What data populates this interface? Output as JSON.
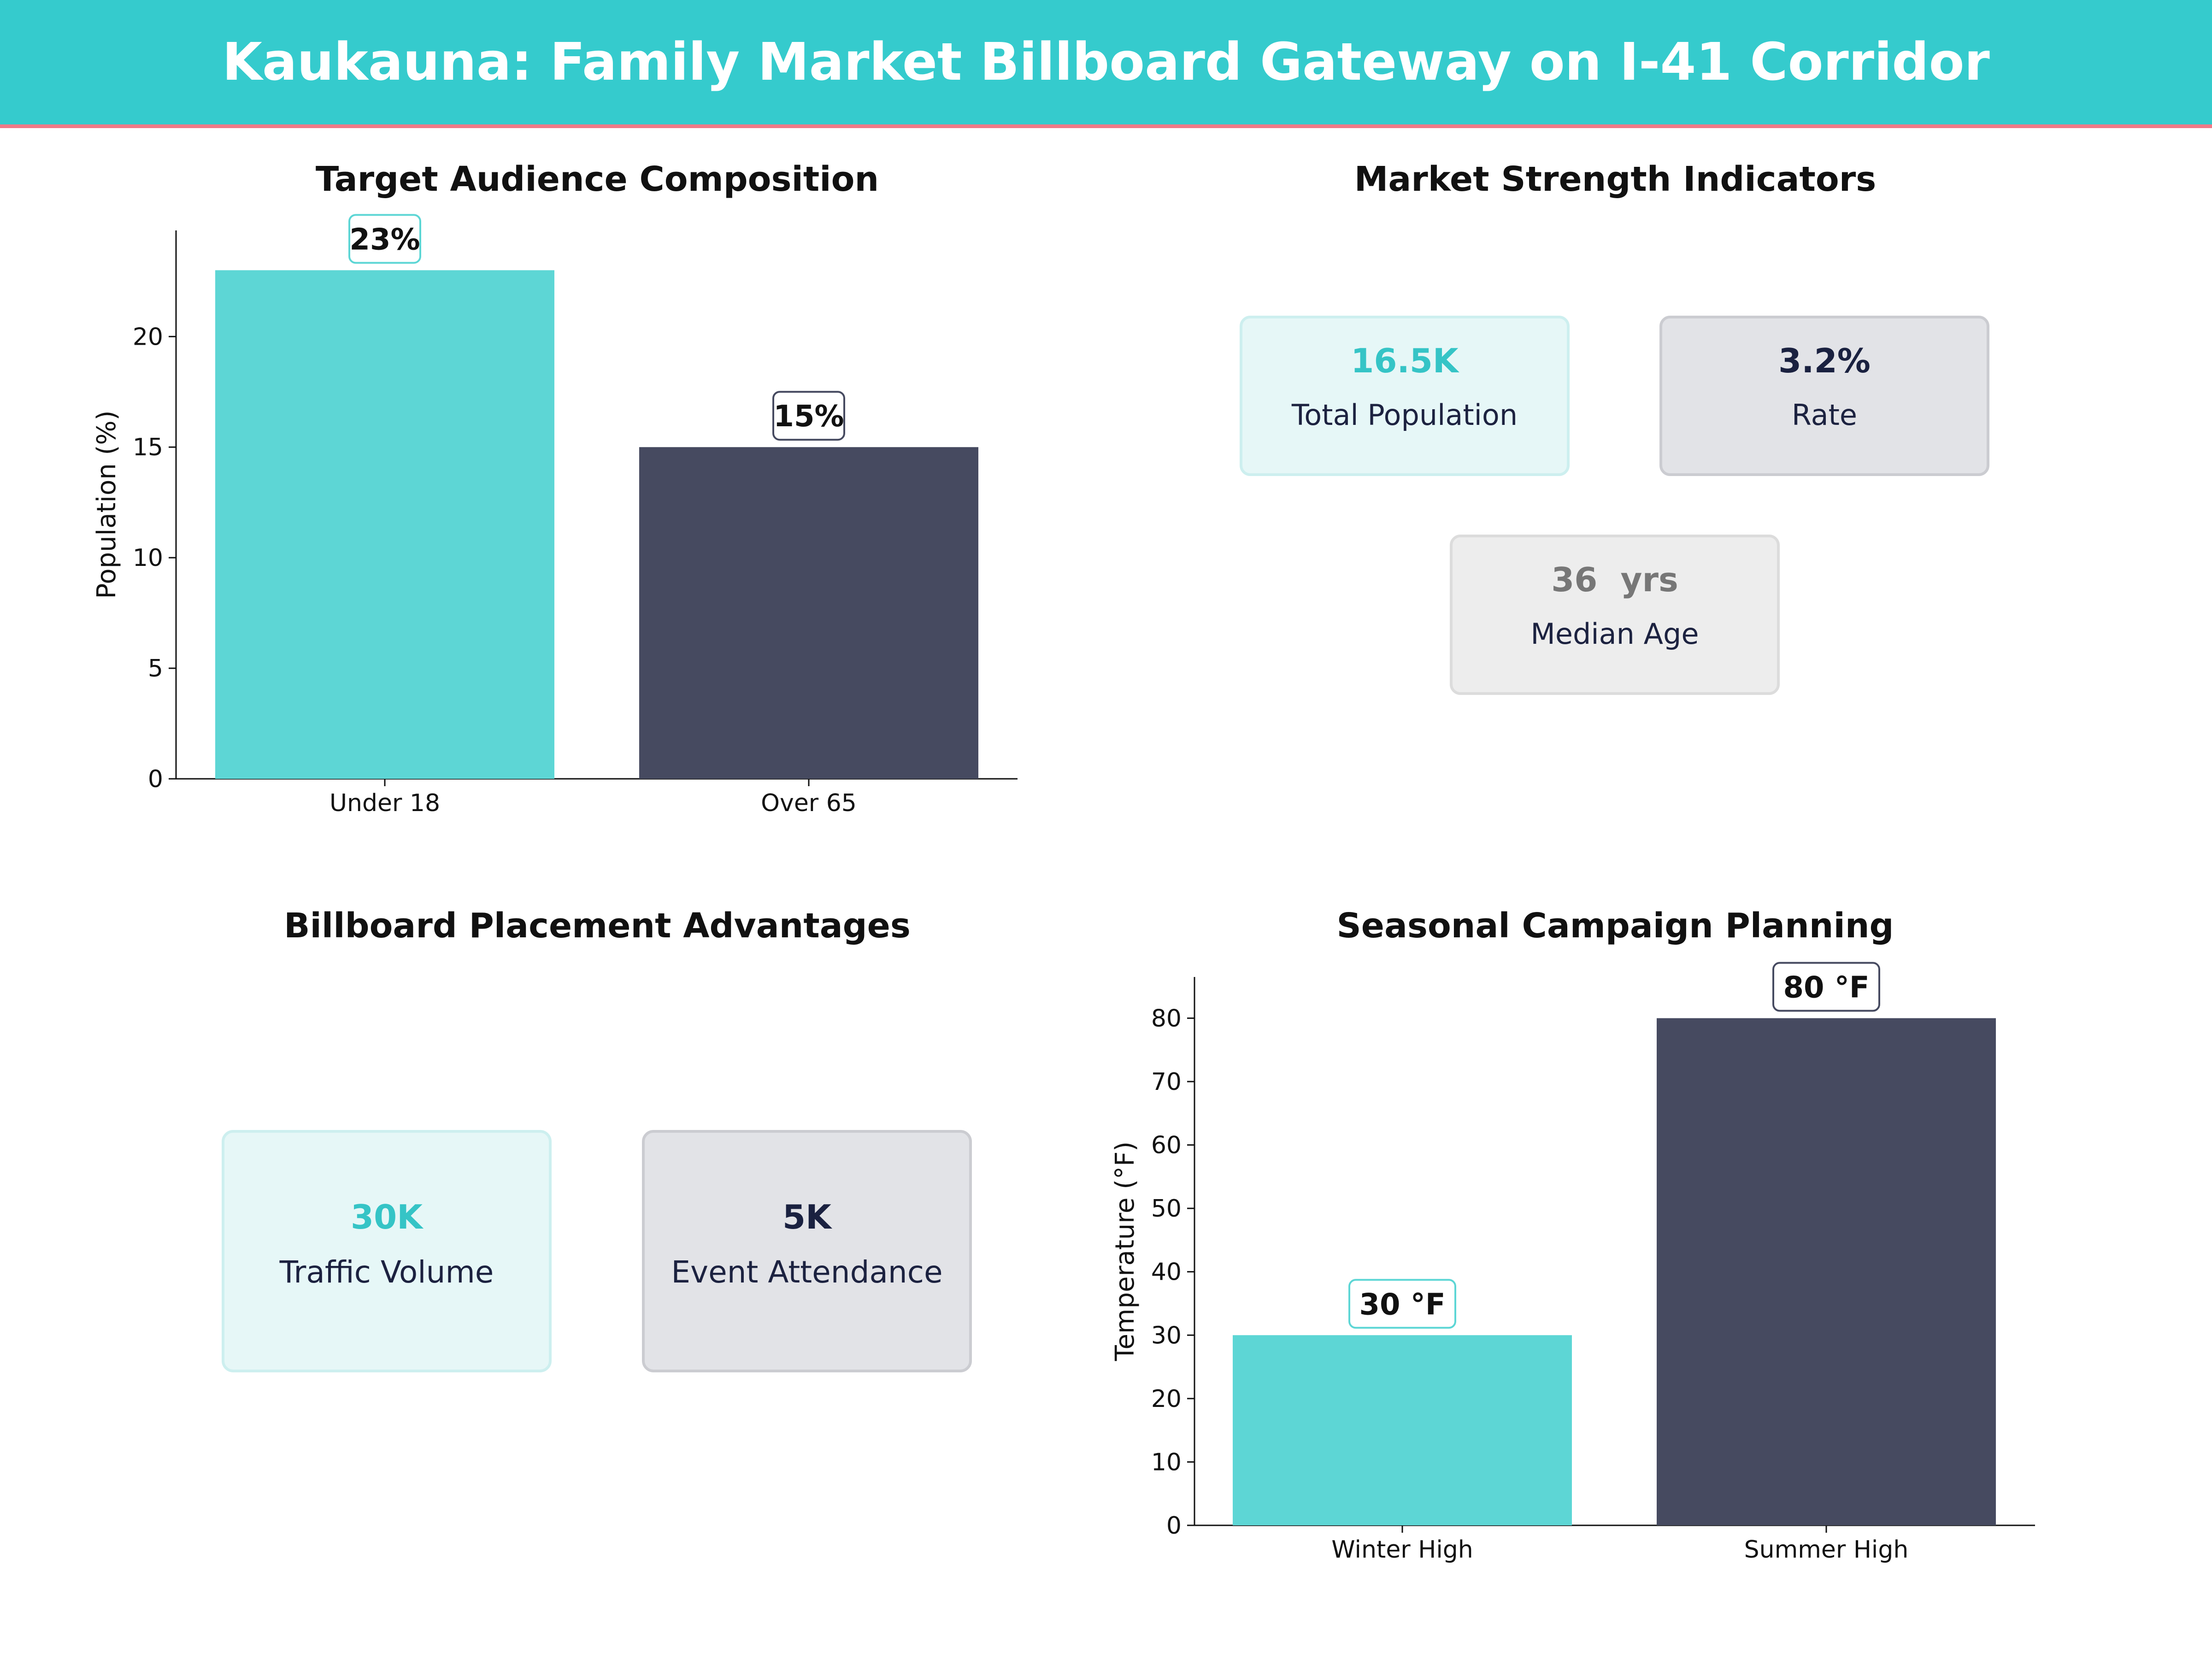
{
  "page_title": "Kaukauna: Family Market Billboard Gateway on I-41 Corridor",
  "colors": {
    "header_bg": "#35CBCD",
    "header_border": "#F07A87",
    "teal": "#5DD6D5",
    "navy": "#464A60",
    "teal_text": "#35C4C6",
    "navy_text": "#1A2140",
    "gray_text": "#777777"
  },
  "panels": {
    "audience": {
      "title": "Target Audience Composition"
    },
    "market": {
      "title": "Market Strength Indicators",
      "cards": [
        {
          "value": "16.5K",
          "label": "Total Population",
          "style": "teal"
        },
        {
          "value": "3.2%",
          "label": "Rate",
          "style": "navy"
        },
        {
          "value": "36  yrs",
          "label": "Median Age",
          "style": "gray"
        }
      ]
    },
    "billboard": {
      "title": "Billboard Placement Advantages",
      "cards": [
        {
          "value": "30K",
          "label": "Traffic Volume",
          "style": "teal"
        },
        {
          "value": "5K",
          "label": "Event Attendance",
          "style": "navy"
        }
      ]
    },
    "seasonal": {
      "title": "Seasonal Campaign Planning"
    }
  },
  "chart_data": [
    {
      "type": "bar",
      "title": "Target Audience Composition",
      "categories": [
        "Under 18",
        "Over 65"
      ],
      "values": [
        23,
        15
      ],
      "data_labels": [
        "23%",
        "15%"
      ],
      "ylabel": "Population (%)",
      "xlabel": "",
      "ylim": [
        0,
        24.8
      ],
      "yticks": [
        0,
        5,
        10,
        15,
        20
      ],
      "bar_colors": [
        "#5DD6D5",
        "#464A60"
      ],
      "grid": false
    },
    {
      "type": "bar",
      "title": "Seasonal Campaign Planning",
      "categories": [
        "Winter High",
        "Summer High"
      ],
      "values": [
        30,
        80
      ],
      "data_labels": [
        "30 °F",
        "80 °F"
      ],
      "ylabel": "Temperature (°F)",
      "xlabel": "",
      "ylim": [
        0,
        86.5
      ],
      "yticks": [
        0,
        10,
        20,
        30,
        40,
        50,
        60,
        70,
        80
      ],
      "bar_colors": [
        "#5DD6D5",
        "#464A60"
      ],
      "grid": false
    }
  ]
}
